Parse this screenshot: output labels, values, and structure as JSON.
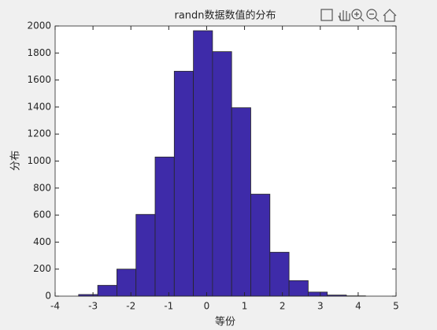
{
  "chart_data": {
    "type": "histogram",
    "title": "randn数据数值的分布",
    "x_label": "等份",
    "y_label": "分布",
    "bins": [
      -3.38,
      -2.875,
      -2.37,
      -1.865,
      -1.36,
      -0.855,
      -0.35,
      0.155,
      0.66,
      1.165,
      1.67,
      2.175,
      2.68,
      3.185,
      3.69,
      4.195
    ],
    "values": [
      12,
      80,
      200,
      605,
      1030,
      1665,
      1965,
      1810,
      1395,
      755,
      325,
      115,
      30,
      8,
      2
    ],
    "color": "#3e2ba9",
    "xlim": [
      -4,
      5
    ],
    "xticks": [
      -4,
      -3,
      -2,
      -1,
      0,
      1,
      2,
      3,
      4,
      5
    ],
    "ylim": [
      0,
      2000
    ],
    "yticks": [
      0,
      200,
      400,
      600,
      800,
      1000,
      1200,
      1400,
      1600,
      1800,
      2000
    ]
  }
}
